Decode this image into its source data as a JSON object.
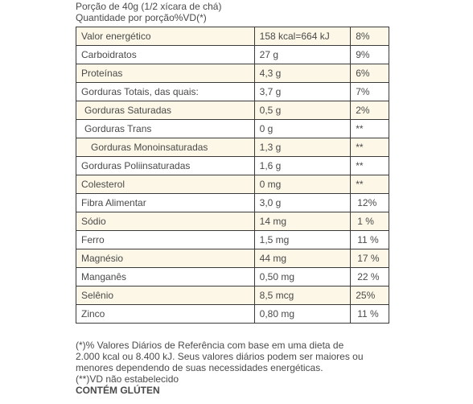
{
  "header": {
    "serving": "Porção de 40g (1/2 xícara de chá)",
    "quantity": "Quantidade por porção%VD(*)"
  },
  "table": {
    "rows": [
      [
        "Valor energético",
        "158 kcal=664 kJ",
        "8%"
      ],
      [
        "Carboidratos",
        "27 g",
        "9%"
      ],
      [
        "Proteínas",
        "4,3 g",
        "6%"
      ],
      [
        "Gorduras Totais, das quais:",
        "3,7 g",
        "7%"
      ],
      [
        "Gorduras Saturadas",
        "0,5 g",
        "2%"
      ],
      [
        "Gorduras Trans",
        "0 g",
        "**"
      ],
      [
        "Gorduras Monoinsaturadas",
        "1,3 g",
        "**"
      ],
      [
        "Gorduras Poliinsaturadas",
        "1,6 g",
        "**"
      ],
      [
        "Colesterol",
        "0 mg",
        "**"
      ],
      [
        "Fibra Alimentar",
        "3,0 g",
        "12%"
      ],
      [
        "Sódio",
        "14 mg",
        "1 %"
      ],
      [
        "Ferro",
        "1,5 mg",
        "11 %"
      ],
      [
        "Magnésio",
        "44 mg",
        "17 %"
      ],
      [
        "Manganês",
        "0,50 mg",
        "22 %"
      ],
      [
        "Selênio",
        "8,5 mcg",
        "25%"
      ],
      [
        "Zinco",
        "0,80 mg",
        "11 %"
      ]
    ]
  },
  "footer": {
    "lines": [
      "(*)% Valores Diários de Referência com base em uma dieta de",
      "2.000 kcal ou 8.400 kJ. Seus valores diários podem ser maiores ou",
      "menores dependendo de suas necessidades energéticas.",
      "(**)VD não estabelecido"
    ],
    "allergen": "CONTÉM GLÚTEN"
  }
}
